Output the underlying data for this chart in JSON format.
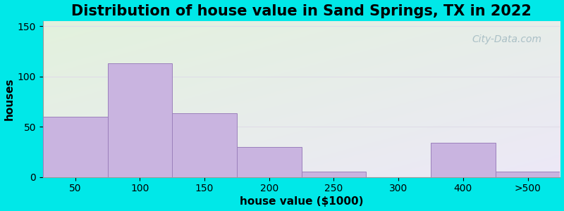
{
  "title": "Distribution of house value in Sand Springs, TX in 2022",
  "xlabel": "house value ($1000)",
  "ylabel": "houses",
  "tick_labels": [
    "50",
    "100",
    "150",
    "200",
    "250",
    "300",
    "400",
    ">500"
  ],
  "bar_values": [
    60,
    113,
    63,
    30,
    5,
    0,
    34,
    5
  ],
  "bar_color": "#c9b4e0",
  "bar_edge_color": "#9b80bb",
  "ylim": [
    0,
    155
  ],
  "yticks": [
    0,
    50,
    100,
    150
  ],
  "background_outer": "#00e8e8",
  "background_top_left": "#e2f2dc",
  "background_bottom_right": "#ede8f8",
  "title_fontsize": 15,
  "axis_label_fontsize": 11,
  "tick_fontsize": 10,
  "watermark_text": "City-Data.com",
  "watermark_color": "#a0b8c0",
  "grid_color": "#e0dce8",
  "figsize": [
    8.0,
    3.0
  ],
  "dpi": 100
}
